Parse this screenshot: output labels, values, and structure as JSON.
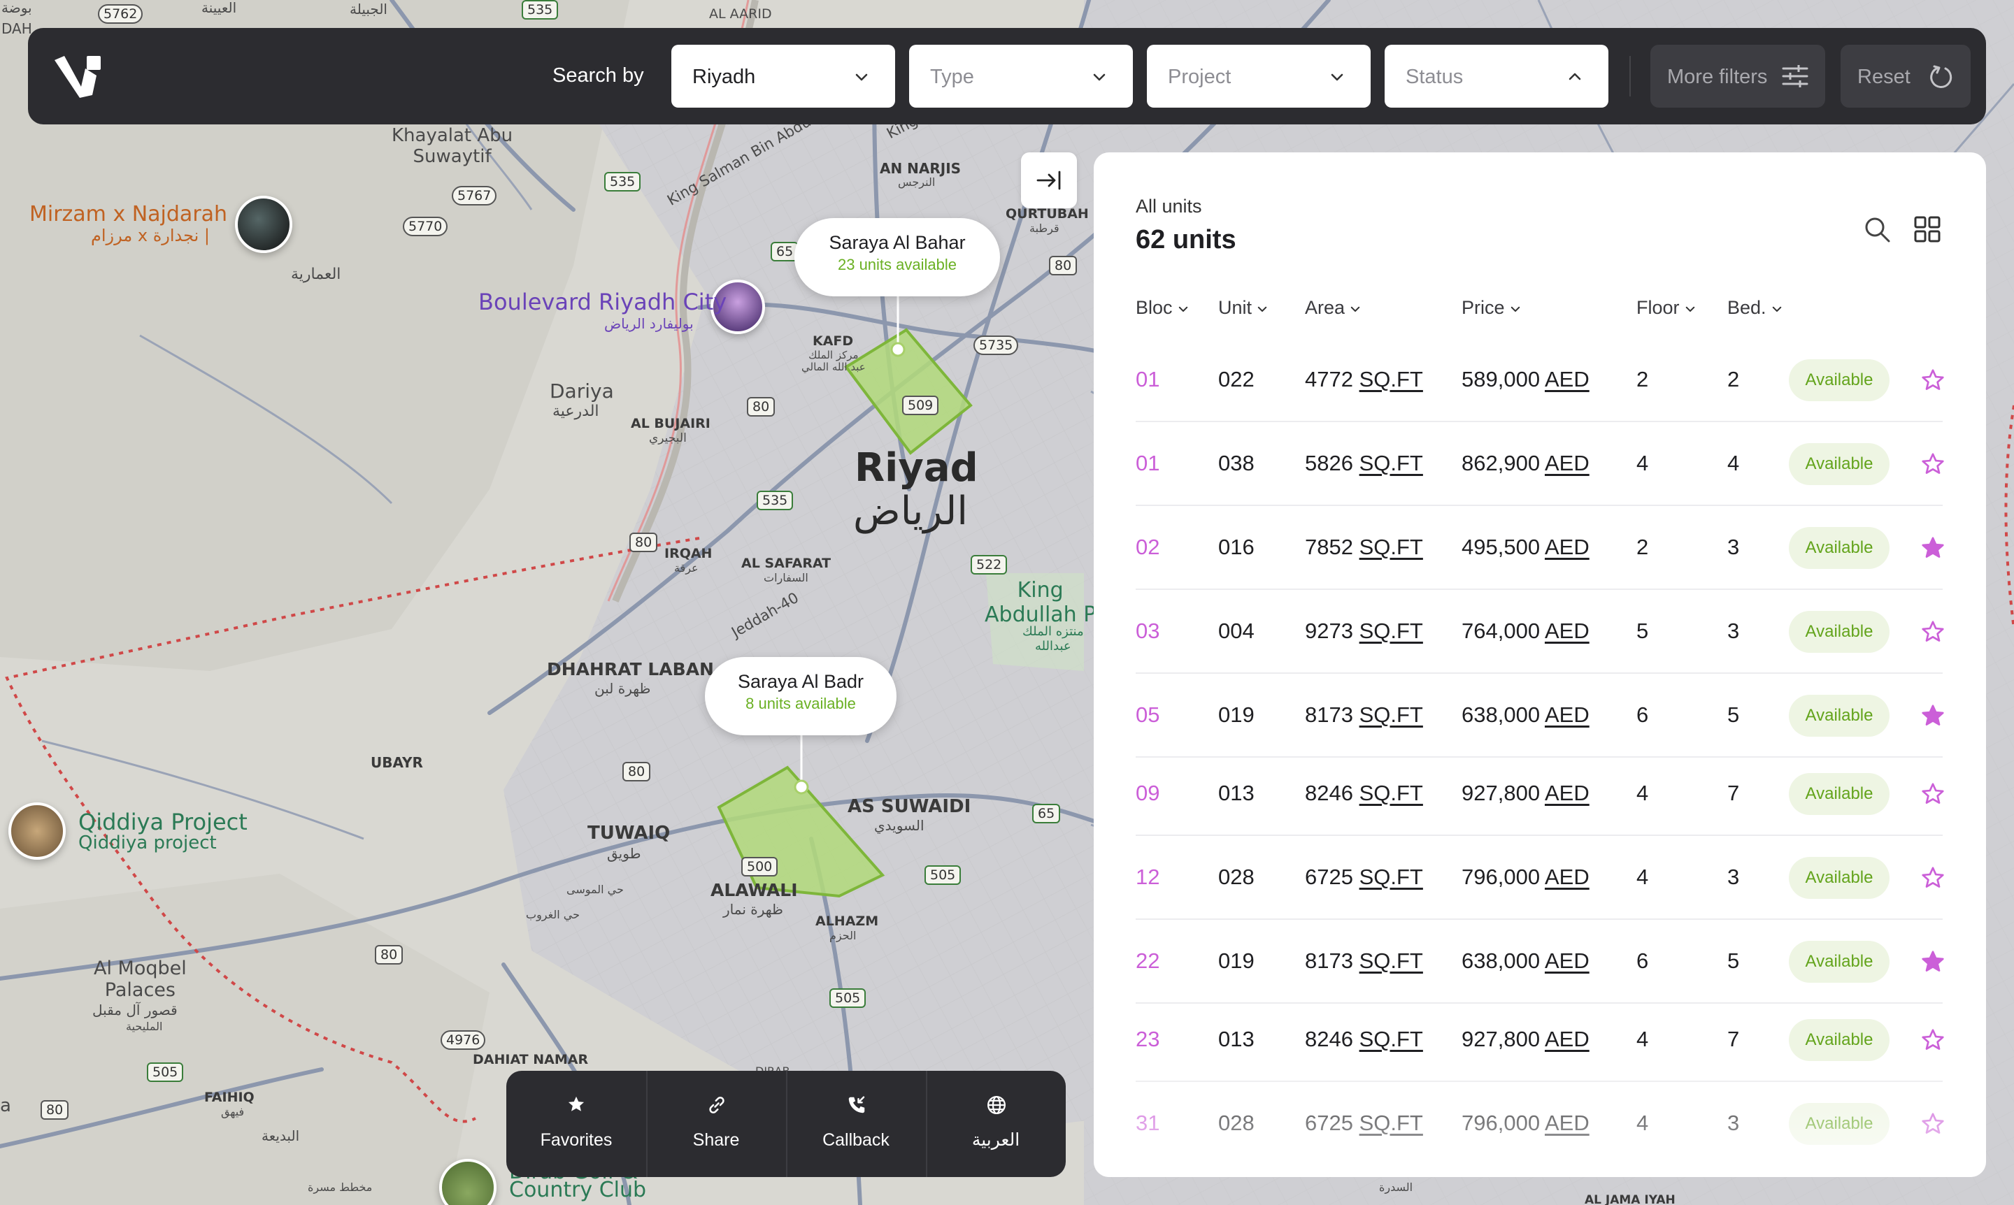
{
  "app": {
    "brand_color": "#2c2c30",
    "accent_color": "#cb5fd8",
    "available_color": "#63a41c"
  },
  "topbar": {
    "search_label": "Search by",
    "filters": {
      "city": {
        "value": "Riyadh",
        "placeholder": false
      },
      "type": {
        "value": "Type",
        "placeholder": true
      },
      "project": {
        "value": "Project",
        "placeholder": true
      },
      "status": {
        "value": "Status",
        "placeholder": true,
        "expanded": true
      }
    },
    "more_filters_label": "More filters",
    "reset_label": "Reset"
  },
  "map": {
    "city_label_en": "Riyad",
    "city_label_ar": "الرياض",
    "projects": [
      {
        "name": "Saraya Al Bahar",
        "availability": "23 units available",
        "highlight_color": "#9acd5a"
      },
      {
        "name": "Saraya Al Badr",
        "availability": "8 units available",
        "highlight_color": "#9acd5a"
      }
    ],
    "pois": {
      "mirzam": {
        "en": "Mirzam x Najdarah",
        "ar": "مرزام x نجدارة |"
      },
      "boulevard": {
        "en": "Boulevard Riyadh City",
        "ar": "بوليفارد الرياض"
      },
      "qiddiya": {
        "en": "Qiddiya Project",
        "sub": "Qiddiya project"
      },
      "country_club": {
        "en": "Country Club",
        "partial": "Dirab Golf &"
      }
    },
    "labels": {
      "khayalat": "Khayalat Abu\nSuwaytif",
      "amariyah_ar": "العمارية",
      "dariya": "Dariya",
      "dariya_ar": "الدرعية",
      "al_bujairi": "AL BUJAIRI",
      "al_bujairi_ar": "البجيري",
      "kafd": "KAFD",
      "kafd_ar": "مركز الملك\nعبد الله المالي",
      "an_narjis": "AN NARJIS",
      "an_narjis_ar": "النرجس",
      "qurtubah": "QURTUBAH",
      "qurtubah_ar": "قرطبة",
      "al_aarid": "AL AARID",
      "irqah": "IRQAH",
      "irqah_ar": "عرقة",
      "al_safarat": "AL SAFARAT",
      "al_safarat_ar": "السفارات",
      "king_abdullah": "King\nAbdullah P",
      "king_abdullah_ar": "منتزه الملك\nعبدالله",
      "dhahrat_laban": "DHAHRAT LABAN",
      "dhahrat_laban_ar": "ظهرة لبن",
      "ubayr": "UBAYR",
      "tuwaiq": "TUWAIQ",
      "tuwaiq_ar": "طويق",
      "alawali": "ALAWALI",
      "alawali_ar": "ظهرة نمار",
      "as_suwaidi": "AS SUWAIDI",
      "as_suwaidi_ar": "السويدي",
      "alhazm": "ALHAZM",
      "alhazm_ar": "الحزم",
      "hay_musa": "حي الموسى",
      "hay_ghuroub": "حي الغروب",
      "al_moqbel": "Al Moqbel\nPalaces",
      "al_moqbel_ar": "قصور آل مقبل",
      "al_moqbel_ar2": "المليحية",
      "dahiat_namar": "DAHIAT NAMAR",
      "faihiq": "FAIHIQ",
      "faihiq_ar": "فيهق",
      "badiah_ar": "البديعة",
      "top_ar1": "العيينة",
      "top_ar2": "الجبيلة",
      "top_left_ar": "بوضة",
      "top_left_dah": "DAH",
      "road_king_salman": "King Salman Bin Abdulaziz Rd",
      "road_jeddah": "Jeddah-40",
      "road_king": "King",
      "al_jamaiyah": "AL JAMA IYAH",
      "al_sidrah_ar": "السدرة",
      "mukhatat_ar": "مخطط مسرة",
      "bottom_a": "a",
      "diraa": "DIRAB"
    },
    "shields": [
      "5762",
      "535",
      "5767",
      "5770",
      "535",
      "65",
      "80",
      "80",
      "5735",
      "509",
      "80",
      "535",
      "522",
      "80",
      "80",
      "500",
      "505",
      "505",
      "65",
      "80",
      "4976",
      "505",
      "80",
      "5"
    ]
  },
  "panel": {
    "subtitle": "All units",
    "count": "62 units",
    "columns": [
      "Bloc",
      "Unit",
      "Area",
      "Price",
      "Floor",
      "Bed."
    ],
    "area_unit": "SQ.FT",
    "currency": "AED",
    "rows": [
      {
        "bloc": "01",
        "unit": "022",
        "area": "4772",
        "price": "589,000",
        "floor": "2",
        "bed": "2",
        "status": "Available",
        "favorite": false
      },
      {
        "bloc": "01",
        "unit": "038",
        "area": "5826",
        "price": "862,900",
        "floor": "4",
        "bed": "4",
        "status": "Available",
        "favorite": false
      },
      {
        "bloc": "02",
        "unit": "016",
        "area": "7852",
        "price": "495,500",
        "floor": "2",
        "bed": "3",
        "status": "Available",
        "favorite": true
      },
      {
        "bloc": "03",
        "unit": "004",
        "area": "9273",
        "price": "764,000",
        "floor": "5",
        "bed": "3",
        "status": "Available",
        "favorite": false
      },
      {
        "bloc": "05",
        "unit": "019",
        "area": "8173",
        "price": "638,000",
        "floor": "6",
        "bed": "5",
        "status": "Available",
        "favorite": true
      },
      {
        "bloc": "09",
        "unit": "013",
        "area": "8246",
        "price": "927,800",
        "floor": "4",
        "bed": "7",
        "status": "Available",
        "favorite": false
      },
      {
        "bloc": "12",
        "unit": "028",
        "area": "6725",
        "price": "796,000",
        "floor": "4",
        "bed": "3",
        "status": "Available",
        "favorite": false
      },
      {
        "bloc": "22",
        "unit": "019",
        "area": "8173",
        "price": "638,000",
        "floor": "6",
        "bed": "5",
        "status": "Available",
        "favorite": true
      },
      {
        "bloc": "23",
        "unit": "013",
        "area": "8246",
        "price": "927,800",
        "floor": "4",
        "bed": "7",
        "status": "Available",
        "favorite": false
      },
      {
        "bloc": "31",
        "unit": "028",
        "area": "6725",
        "price": "796,000",
        "floor": "4",
        "bed": "3",
        "status": "Available",
        "favorite": false
      }
    ]
  },
  "actions": [
    {
      "label": "Favorites",
      "icon": "star-icon"
    },
    {
      "label": "Share",
      "icon": "link-icon"
    },
    {
      "label": "Callback",
      "icon": "phone-callback-icon"
    },
    {
      "label": "العربية",
      "icon": "globe-icon"
    }
  ]
}
